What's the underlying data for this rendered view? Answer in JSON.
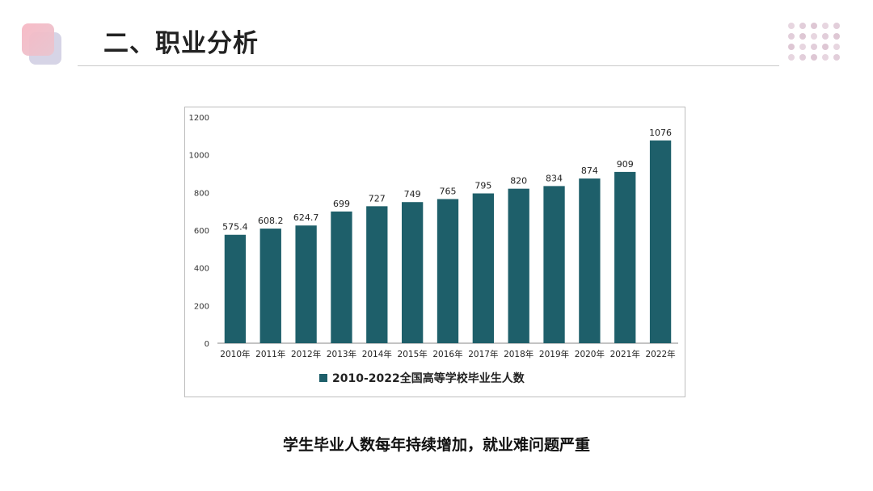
{
  "slide": {
    "title": "二、职业分析",
    "caption": "学生毕业人数每年持续增加，就业难问题严重"
  },
  "colors": {
    "bar": "#1e5f6a",
    "accent_pink": "#f2a9b8",
    "accent_lavender": "#cfcde3",
    "dot": "#d3b4c6",
    "grid": "#e4e4e4",
    "axis": "#8a8a8a"
  },
  "chart_data": {
    "type": "bar",
    "categories": [
      "2010年",
      "2011年",
      "2012年",
      "2013年",
      "2014年",
      "2015年",
      "2016年",
      "2017年",
      "2018年",
      "2019年",
      "2020年",
      "2021年",
      "2022年"
    ],
    "values": [
      575.4,
      608.2,
      624.7,
      699,
      727,
      749,
      765,
      795,
      820,
      834,
      874,
      909,
      1076
    ],
    "value_labels": [
      "575.4",
      "608.2",
      "624.7",
      "699",
      "727",
      "749",
      "765",
      "795",
      "820",
      "834",
      "874",
      "909",
      "1076"
    ],
    "series_name": "2010-2022全国高等学校毕业生人数",
    "ylim": [
      0,
      1200
    ],
    "yticks": [
      0,
      200,
      400,
      600,
      800,
      1000,
      1200
    ],
    "ytick_labels": [
      "0",
      "200",
      "400",
      "600",
      "800",
      "1000",
      "1200"
    ],
    "legend_position": "bottom",
    "gridlines": false
  }
}
